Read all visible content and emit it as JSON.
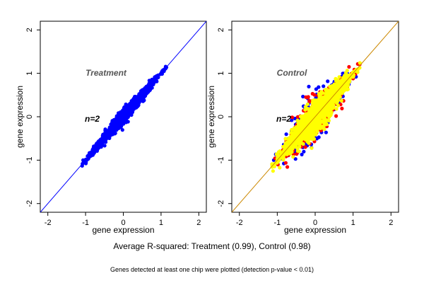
{
  "chart_data": [
    {
      "type": "scatter",
      "title": "Treatment",
      "annotation": "n=2",
      "xlabel": "gene expression",
      "ylabel": "gene expression",
      "xlim": [
        -2.2,
        2.2
      ],
      "ylim": [
        -2.2,
        2.2
      ],
      "xticks": [
        -2,
        -1,
        0,
        1,
        2
      ],
      "yticks": [
        -2,
        -1,
        0,
        1,
        2
      ],
      "reference_line": {
        "slope": 1,
        "intercept": 0,
        "color": "#0000ff"
      },
      "series": [
        {
          "color": "#0000ff",
          "x_range": [
            -1.1,
            1.15
          ],
          "y_spread": 0.06,
          "count": 1400
        }
      ]
    },
    {
      "type": "scatter",
      "title": "Control",
      "annotation": "n=2",
      "xlabel": "gene expression",
      "ylabel": "gene expression",
      "xlim": [
        -2.2,
        2.2
      ],
      "ylim": [
        -2.2,
        2.2
      ],
      "xticks": [
        -2,
        -1,
        0,
        1,
        2
      ],
      "yticks": [
        -2,
        -1,
        0,
        1,
        2
      ],
      "reference_line": {
        "slope": 1,
        "intercept": 0,
        "color": "#cc8800"
      },
      "series": [
        {
          "color": "#0000ff",
          "x_range": [
            -1.1,
            1.2
          ],
          "y_spread": 0.2,
          "count": 500
        },
        {
          "color": "#ff0000",
          "x_range": [
            -1.1,
            1.2
          ],
          "y_spread": 0.19,
          "count": 500
        },
        {
          "color": "#ffff00",
          "x_range": [
            -1.15,
            1.2
          ],
          "y_spread": 0.15,
          "count": 1500
        }
      ]
    }
  ],
  "captions": {
    "main": "Average R-squared: Treatment (0.99), Control (0.98)",
    "sub": "Genes detected at least one chip were plotted (detection p-value < 0.01)"
  }
}
